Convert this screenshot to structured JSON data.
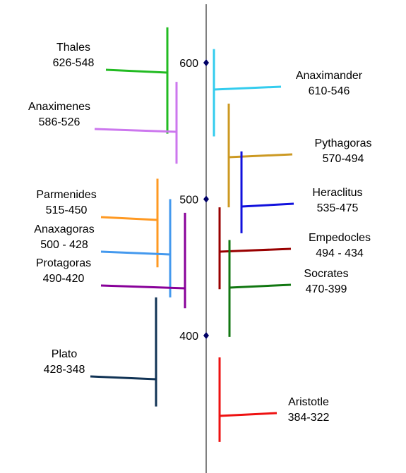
{
  "chart_data": {
    "type": "timeline",
    "axis": {
      "unit": "BC",
      "range": [
        310,
        650
      ],
      "ticks": [
        {
          "value": 600,
          "label": "600"
        },
        {
          "value": 500,
          "label": "500"
        },
        {
          "value": 400,
          "label": "400"
        }
      ]
    },
    "philosophers": [
      {
        "name": "Thales",
        "dates": "626-548",
        "start": 626,
        "end": 548,
        "side": "left",
        "color": "#22bb22"
      },
      {
        "name": "Anaximander",
        "dates": "610-546",
        "start": 610,
        "end": 546,
        "side": "right",
        "color": "#33ccee"
      },
      {
        "name": "Anaximenes",
        "dates": "586-526",
        "start": 586,
        "end": 526,
        "side": "left",
        "color": "#cc77ee"
      },
      {
        "name": "Pythagoras",
        "dates": "570-494",
        "start": 570,
        "end": 494,
        "side": "right",
        "color": "#cc9922"
      },
      {
        "name": "Heraclitus",
        "dates": "535-475",
        "start": 535,
        "end": 475,
        "side": "right",
        "color": "#1111dd"
      },
      {
        "name": "Parmenides",
        "dates": "515-450",
        "start": 515,
        "end": 450,
        "side": "left",
        "color": "#ff9922"
      },
      {
        "name": "Anaxagoras",
        "dates": "500 - 428",
        "start": 500,
        "end": 428,
        "side": "left",
        "color": "#4499ee"
      },
      {
        "name": "Protagoras",
        "dates": "490-420",
        "start": 490,
        "end": 420,
        "side": "left",
        "color": "#880099"
      },
      {
        "name": "Empedocles",
        "dates": "494 - 434",
        "start": 494,
        "end": 434,
        "side": "right",
        "color": "#990000"
      },
      {
        "name": "Socrates",
        "dates": "470-399",
        "start": 470,
        "end": 399,
        "side": "right",
        "color": "#117711"
      },
      {
        "name": "Plato",
        "dates": "428-348",
        "start": 428,
        "end": 348,
        "side": "left",
        "color": "#113355"
      },
      {
        "name": "Aristotle",
        "dates": "384-322",
        "start": 384,
        "end": 322,
        "side": "right",
        "color": "#ee1111"
      }
    ]
  }
}
